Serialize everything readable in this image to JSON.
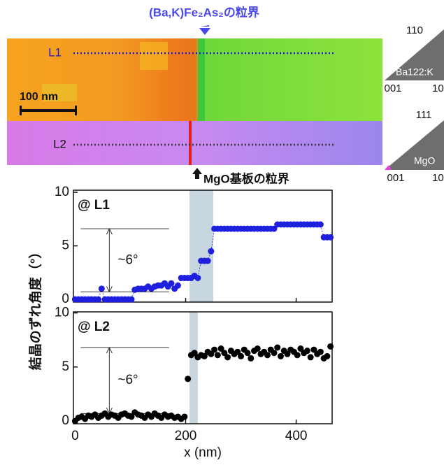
{
  "map": {
    "gb_label": "(Ba,K)Fe₂As₂の粒界",
    "line1": "L1",
    "line2": "L2",
    "scale": "100 nm",
    "mgo_label": "MgO基板の粒界"
  },
  "ipf": [
    {
      "top": "110",
      "name": "Ba122:K",
      "left": "001",
      "right": "10"
    },
    {
      "top": "111",
      "name": "MgO",
      "left": "001",
      "right": "10"
    }
  ],
  "figure": {
    "ylabel": "結晶のずれ角度（°）",
    "xlabel": "x (nm)"
  },
  "chart_data": [
    {
      "type": "scatter",
      "label": "@ L1",
      "annotation": "~6°",
      "color": "#1f1fe0",
      "connect": true,
      "xlim": [
        -3,
        465
      ],
      "ylim": [
        -0.25,
        10.2
      ],
      "xticks": [
        0,
        200,
        400
      ],
      "yticks": [
        0,
        5,
        10
      ],
      "shade": [
        207,
        250
      ],
      "shade_color": "#c8d6e0",
      "ref_levels": [
        0.7,
        6.6
      ],
      "ref_x": [
        10,
        170
      ],
      "arrow_x": 62,
      "x": [
        0,
        6,
        12,
        18,
        24,
        30,
        36,
        42,
        48,
        54,
        60,
        66,
        72,
        78,
        84,
        90,
        96,
        102,
        108,
        114,
        120,
        126,
        132,
        138,
        144,
        150,
        156,
        162,
        168,
        174,
        180,
        186,
        192,
        198,
        204,
        210,
        216,
        222,
        228,
        234,
        240,
        246,
        252,
        258,
        264,
        270,
        276,
        282,
        288,
        294,
        300,
        306,
        312,
        318,
        324,
        330,
        336,
        342,
        348,
        354,
        360,
        366,
        372,
        378,
        384,
        390,
        396,
        402,
        408,
        414,
        420,
        426,
        432,
        438,
        444,
        450,
        456,
        462
      ],
      "values": [
        0,
        0,
        0,
        0,
        0,
        0,
        0,
        0,
        1.0,
        0,
        0,
        0,
        0,
        0,
        0,
        0,
        0,
        0,
        0.9,
        1.0,
        1.0,
        1.0,
        1.2,
        1.0,
        1.2,
        1.3,
        1.3,
        1.5,
        1.2,
        1.5,
        1.0,
        1.3,
        2.0,
        2.0,
        2.0,
        2.0,
        2.2,
        2.0,
        3.6,
        3.6,
        3.6,
        4.5,
        6.6,
        6.6,
        6.6,
        6.6,
        6.6,
        6.6,
        6.6,
        6.6,
        6.6,
        6.6,
        6.6,
        6.6,
        6.6,
        6.6,
        6.6,
        6.6,
        6.6,
        6.6,
        6.6,
        7.0,
        7.0,
        7.0,
        7.0,
        7.0,
        7.0,
        7.0,
        7.0,
        7.0,
        7.0,
        7.0,
        7.0,
        7.0,
        7.0,
        5.8,
        5.8,
        5.8
      ]
    },
    {
      "type": "scatter",
      "label": "@ L2",
      "annotation": "~6°",
      "color": "#000000",
      "connect": false,
      "xlim": [
        -3,
        465
      ],
      "ylim": [
        -0.25,
        10.1
      ],
      "xticks": [
        0,
        200,
        400
      ],
      "yticks": [
        0,
        5,
        10
      ],
      "shade": [
        207,
        222
      ],
      "shade_color": "#c8d6e0",
      "ref_levels": [
        0.7,
        6.8
      ],
      "ref_x": [
        10,
        170
      ],
      "arrow_x": 62,
      "x": [
        0,
        6,
        12,
        18,
        24,
        30,
        36,
        42,
        48,
        54,
        60,
        66,
        72,
        78,
        84,
        90,
        96,
        102,
        108,
        114,
        120,
        126,
        132,
        138,
        144,
        150,
        156,
        162,
        168,
        174,
        180,
        186,
        192,
        198,
        204,
        210,
        216,
        222,
        228,
        234,
        240,
        246,
        252,
        258,
        264,
        270,
        276,
        282,
        288,
        294,
        300,
        306,
        312,
        318,
        324,
        330,
        336,
        342,
        348,
        354,
        360,
        366,
        372,
        378,
        384,
        390,
        396,
        402,
        408,
        414,
        420,
        426,
        432,
        438,
        444,
        450,
        456,
        462
      ],
      "values": [
        0.0,
        0.3,
        0.4,
        0.2,
        0.5,
        0.4,
        0.6,
        0.3,
        0.5,
        0.7,
        0.4,
        0.6,
        0.5,
        0.3,
        0.6,
        0.7,
        0.5,
        0.4,
        0.8,
        0.6,
        0.5,
        0.3,
        0.6,
        0.4,
        0.7,
        0.5,
        0.3,
        0.6,
        0.4,
        0.5,
        0.3,
        0.4,
        0.2,
        0.4,
        3.9,
        6.1,
        6.3,
        5.9,
        6.1,
        6.0,
        6.4,
        6.2,
        6.6,
        6.1,
        6.7,
        6.3,
        5.9,
        6.5,
        6.2,
        6.4,
        6.0,
        6.6,
        6.3,
        5.8,
        6.5,
        6.7,
        6.2,
        6.4,
        6.1,
        6.6,
        6.3,
        6.8,
        6.0,
        6.5,
        6.2,
        6.6,
        6.4,
        6.1,
        6.7,
        6.3,
        6.5,
        5.9,
        6.6,
        6.2,
        6.4,
        5.8,
        6.0,
        6.9
      ]
    }
  ]
}
